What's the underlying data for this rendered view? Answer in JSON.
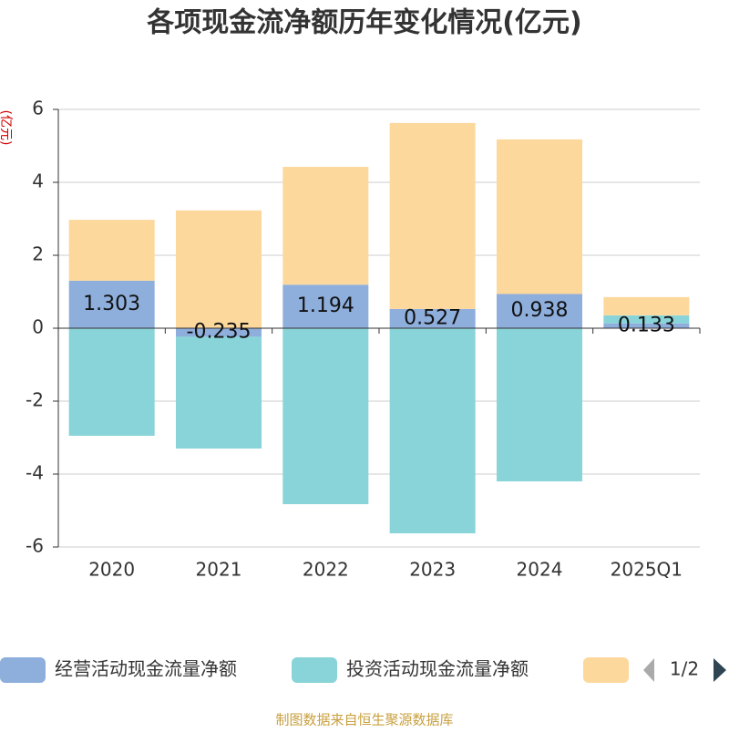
{
  "chart_data": {
    "type": "bar",
    "stacked": true,
    "title": "各项现金流净额历年变化情况(亿元)",
    "y_axis_label": "(亿元)",
    "categories": [
      "2020",
      "2021",
      "2022",
      "2023",
      "2024",
      "2025Q1"
    ],
    "series": [
      {
        "name": "经营活动现金流量净额",
        "color": "#8eaedc",
        "values": [
          1.303,
          -0.235,
          1.194,
          0.527,
          0.938,
          0.133
        ],
        "show_labels": true
      },
      {
        "name": "投资活动现金流量净额",
        "color": "#88d4d8",
        "values": [
          -2.95,
          -3.065,
          -4.825,
          -5.625,
          -4.2,
          0.22
        ]
      },
      {
        "color": "#fdd89c",
        "values": [
          1.67,
          3.23,
          3.23,
          5.1,
          4.24,
          0.5
        ]
      }
    ],
    "ylim": [
      -6,
      6
    ],
    "yticks": [
      -6,
      -4,
      -2,
      0,
      2,
      4,
      6
    ],
    "grid": true,
    "legend_page": "1/2",
    "source": "制图数据来自恒生聚源数据库"
  }
}
